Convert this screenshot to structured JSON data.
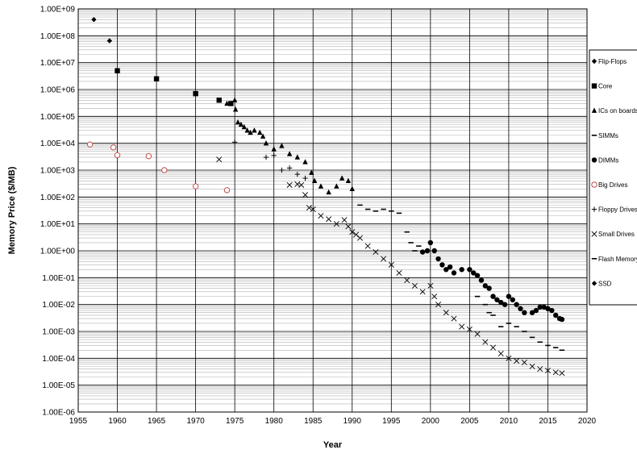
{
  "chart_data": {
    "type": "scatter",
    "title": "",
    "xlabel": "Year",
    "ylabel": "Memory Price ($/MB)",
    "xlim": [
      1955,
      2020
    ],
    "ylim": [
      1e-06,
      1000000000.0
    ],
    "y_scale": "log",
    "grid": true,
    "legend_position": "right",
    "x_ticks": [
      "1955",
      "1960",
      "1965",
      "1970",
      "1975",
      "1980",
      "1985",
      "1990",
      "1995",
      "2000",
      "2005",
      "2010",
      "2015",
      "2020"
    ],
    "y_ticks": [
      "1.00E-06",
      "1.00E-05",
      "1.00E-04",
      "1.00E-03",
      "1.00E-02",
      "1.00E-01",
      "1.00E+00",
      "1.00E+01",
      "1.00E+02",
      "1.00E+03",
      "1.00E+04",
      "1.00E+05",
      "1.00E+06",
      "1.00E+07",
      "1.00E+08",
      "1.00E+09"
    ],
    "series": [
      {
        "name": "Flip-Flops",
        "marker": "diamond",
        "color": "#000000",
        "points": [
          [
            1957,
            400000000.0
          ],
          [
            1959,
            65000000.0
          ]
        ]
      },
      {
        "name": "Core",
        "marker": "square",
        "color": "#000000",
        "points": [
          [
            1960,
            5000000.0
          ],
          [
            1965,
            2500000.0
          ],
          [
            1970,
            700000.0
          ],
          [
            1973,
            400000.0
          ],
          [
            1974.5,
            300000.0
          ]
        ]
      },
      {
        "name": "ICs on boards",
        "marker": "triangle",
        "color": "#000000",
        "points": [
          [
            1974,
            300000.0
          ],
          [
            1975,
            400000.0
          ],
          [
            1975.1,
            180000.0
          ],
          [
            1975.4,
            60000.0
          ],
          [
            1975.8,
            50000.0
          ],
          [
            1976.2,
            40000.0
          ],
          [
            1976.6,
            30000.0
          ],
          [
            1977,
            25000.0
          ],
          [
            1977.5,
            30000.0
          ],
          [
            1978.2,
            25000.0
          ],
          [
            1978.6,
            18000.0
          ],
          [
            1979,
            10000.0
          ],
          [
            1980,
            6000.0
          ],
          [
            1981,
            8000.0
          ],
          [
            1982,
            4000.0
          ],
          [
            1983,
            3000.0
          ],
          [
            1984,
            2000.0
          ],
          [
            1984.8,
            800.0
          ],
          [
            1985.2,
            400.0
          ],
          [
            1986,
            250.0
          ],
          [
            1987,
            150.0
          ],
          [
            1988,
            250.0
          ],
          [
            1988.7,
            500.0
          ],
          [
            1989.5,
            400.0
          ],
          [
            1990,
            200.0
          ]
        ]
      },
      {
        "name": "SIMMs",
        "marker": "dash",
        "color": "#000000",
        "points": [
          [
            1991,
            50.0
          ],
          [
            1992,
            35.0
          ],
          [
            1993,
            30.0
          ],
          [
            1994,
            35.0
          ],
          [
            1995,
            30.0
          ],
          [
            1996,
            25.0
          ],
          [
            1997,
            5.0
          ],
          [
            1997.5,
            2.0
          ],
          [
            1998,
            1.0
          ],
          [
            1998.5,
            1.5
          ],
          [
            1999,
            0.9
          ]
        ]
      },
      {
        "name": "DIMMs",
        "marker": "circle",
        "color": "#000000",
        "points": [
          [
            1999,
            0.9
          ],
          [
            1999.6,
            1.0
          ],
          [
            2000,
            2.0
          ],
          [
            2000.5,
            1.0
          ],
          [
            2001,
            0.5
          ],
          [
            2001.5,
            0.3
          ],
          [
            2002,
            0.2
          ],
          [
            2002.5,
            0.25
          ],
          [
            2003,
            0.15
          ],
          [
            2004,
            0.2
          ],
          [
            2005,
            0.2
          ],
          [
            2005.5,
            0.15
          ],
          [
            2006,
            0.12
          ],
          [
            2006.5,
            0.08
          ],
          [
            2007,
            0.05
          ],
          [
            2007.5,
            0.04
          ],
          [
            2008,
            0.02
          ],
          [
            2008.5,
            0.015
          ],
          [
            2009,
            0.012
          ],
          [
            2009.5,
            0.01
          ],
          [
            2010,
            0.02
          ],
          [
            2010.5,
            0.015
          ],
          [
            2011,
            0.01
          ],
          [
            2011.5,
            0.007
          ],
          [
            2012,
            0.005
          ],
          [
            2013,
            0.005
          ],
          [
            2013.5,
            0.006
          ],
          [
            2014,
            0.008
          ],
          [
            2014.5,
            0.008
          ],
          [
            2015,
            0.007
          ],
          [
            2015.5,
            0.006
          ],
          [
            2016,
            0.004
          ],
          [
            2016.5,
            0.003
          ],
          [
            2016.8,
            0.0028
          ]
        ]
      },
      {
        "name": "Big Drives",
        "marker": "open-circle",
        "color": "#c0504d",
        "points": [
          [
            1956.5,
            9000
          ],
          [
            1959.5,
            7000
          ],
          [
            1960,
            3600
          ],
          [
            1964,
            3300
          ],
          [
            1966,
            1000
          ],
          [
            1970,
            250
          ],
          [
            1974,
            180
          ]
        ]
      },
      {
        "name": "Floppy Drives",
        "marker": "plus",
        "color": "#000000",
        "points": [
          [
            1975,
            11000.0
          ],
          [
            1979,
            3000
          ],
          [
            1980,
            3500
          ],
          [
            1981,
            1000
          ],
          [
            1982,
            1200
          ],
          [
            1983,
            700
          ],
          [
            1984,
            500
          ]
        ]
      },
      {
        "name": "Small Drives",
        "marker": "x",
        "color": "#000000",
        "points": [
          [
            1973,
            2500
          ],
          [
            1982,
            280
          ],
          [
            1983,
            300
          ],
          [
            1983.5,
            280
          ],
          [
            1984,
            120
          ],
          [
            1984.5,
            40
          ],
          [
            1985,
            35
          ],
          [
            1986,
            20
          ],
          [
            1987,
            15
          ],
          [
            1988,
            10
          ],
          [
            1989,
            14
          ],
          [
            1989.5,
            8
          ],
          [
            1990,
            5
          ],
          [
            1990.5,
            4
          ],
          [
            1991,
            3
          ],
          [
            1992,
            1.5
          ],
          [
            1993,
            0.9
          ],
          [
            1994,
            0.5
          ],
          [
            1995,
            0.3
          ],
          [
            1996,
            0.15
          ],
          [
            1997,
            0.08
          ],
          [
            1998,
            0.05
          ],
          [
            1999,
            0.03
          ],
          [
            2000,
            0.05
          ],
          [
            2000.5,
            0.02
          ],
          [
            2001,
            0.01
          ],
          [
            2002,
            0.005
          ],
          [
            2003,
            0.003
          ],
          [
            2004,
            0.0015
          ],
          [
            2005,
            0.0012
          ],
          [
            2006,
            0.0008
          ],
          [
            2007,
            0.0004
          ],
          [
            2008,
            0.00025
          ],
          [
            2009,
            0.00015
          ],
          [
            2010,
            0.0001
          ],
          [
            2011,
            8e-05
          ],
          [
            2012,
            7e-05
          ],
          [
            2013,
            5e-05
          ],
          [
            2014,
            4e-05
          ],
          [
            2015,
            3.5e-05
          ],
          [
            2016,
            3e-05
          ],
          [
            2016.8,
            2.8e-05
          ]
        ]
      },
      {
        "name": "Flash Memory",
        "marker": "dash",
        "color": "#000000",
        "points": [
          [
            2006,
            0.02
          ],
          [
            2007,
            0.01
          ],
          [
            2007.5,
            0.005
          ],
          [
            2008,
            0.004
          ],
          [
            2009,
            0.0015
          ],
          [
            2010,
            0.002
          ],
          [
            2011,
            0.0015
          ],
          [
            2012,
            0.001
          ],
          [
            2013,
            0.0006
          ],
          [
            2014,
            0.0004
          ],
          [
            2015,
            0.0003
          ],
          [
            2016,
            0.00025
          ],
          [
            2016.8,
            0.0002
          ]
        ]
      },
      {
        "name": "SSD",
        "marker": "diamond",
        "color": "#000000",
        "points": []
      }
    ]
  }
}
